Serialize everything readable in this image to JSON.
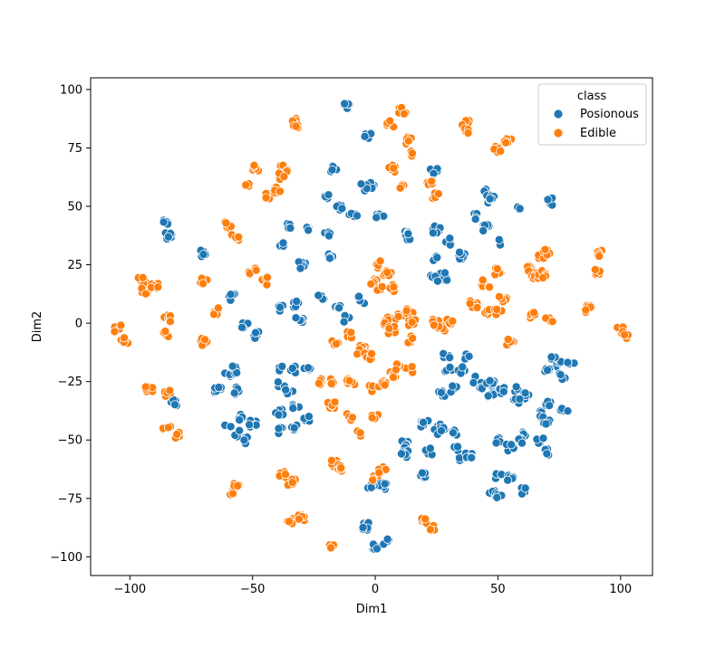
{
  "chart_data": {
    "type": "scatter",
    "title": "",
    "xlabel": "Dim1",
    "ylabel": "Dim2",
    "xlim": [
      -116,
      113
    ],
    "ylim": [
      -108,
      105
    ],
    "xticks": [
      -100,
      -50,
      0,
      50,
      100
    ],
    "yticks": [
      -100,
      -75,
      -50,
      -25,
      0,
      25,
      50,
      75,
      100
    ],
    "legend": {
      "title": "class",
      "position": "top-right"
    },
    "grid": false,
    "series": [
      {
        "name": "Posionous",
        "color": "#1f77b4",
        "clusters": [
          [
            -12,
            93
          ],
          [
            -3,
            80
          ],
          [
            -17,
            66
          ],
          [
            -2,
            59
          ],
          [
            2,
            46
          ],
          [
            -20,
            55
          ],
          [
            -15,
            50
          ],
          [
            -9,
            46
          ],
          [
            -36,
            42
          ],
          [
            -27,
            40
          ],
          [
            -20,
            38
          ],
          [
            -38,
            33
          ],
          [
            -18,
            29
          ],
          [
            -30,
            25
          ],
          [
            -32,
            8
          ],
          [
            -38,
            6
          ],
          [
            -22,
            11
          ],
          [
            -15,
            7
          ],
          [
            -12,
            2
          ],
          [
            -6,
            10
          ],
          [
            -31,
            1
          ],
          [
            -58,
            11
          ],
          [
            -53,
            -1
          ],
          [
            -48,
            -5
          ],
          [
            -85,
            43
          ],
          [
            -84,
            37
          ],
          [
            -70,
            30
          ],
          [
            -60,
            -23
          ],
          [
            -57,
            -20
          ],
          [
            -57,
            -29
          ],
          [
            -64,
            -28
          ],
          [
            -60,
            -43
          ],
          [
            -56,
            -47
          ],
          [
            -54,
            -40
          ],
          [
            -50,
            -43
          ],
          [
            -53,
            -50
          ],
          [
            -39,
            -20
          ],
          [
            -34,
            -20
          ],
          [
            -38,
            -26
          ],
          [
            -28,
            -19
          ],
          [
            -35,
            -30
          ],
          [
            -39,
            -38
          ],
          [
            -32,
            -36
          ],
          [
            -38,
            -46
          ],
          [
            -33,
            -45
          ],
          [
            -28,
            -41
          ],
          [
            -82,
            -34
          ],
          [
            -4,
            -87
          ],
          [
            0,
            -96
          ],
          [
            5,
            -94
          ],
          [
            3,
            -70
          ],
          [
            -2,
            -70
          ],
          [
            12,
            -52
          ],
          [
            12,
            -56
          ],
          [
            22,
            -55
          ],
          [
            19,
            -65
          ],
          [
            20,
            -43
          ],
          [
            25,
            -44
          ],
          [
            27,
            -46
          ],
          [
            33,
            -47
          ],
          [
            33,
            -53
          ],
          [
            35,
            -58
          ],
          [
            38,
            -56
          ],
          [
            27,
            -30
          ],
          [
            32,
            -28
          ],
          [
            40,
            -24
          ],
          [
            38,
            -14
          ],
          [
            29,
            -14
          ],
          [
            30,
            -20
          ],
          [
            35,
            -20
          ],
          [
            43,
            -27
          ],
          [
            47,
            -30
          ],
          [
            47,
            -26
          ],
          [
            52,
            -29
          ],
          [
            58,
            -28
          ],
          [
            62,
            -31
          ],
          [
            58,
            -34
          ],
          [
            67,
            -39
          ],
          [
            70,
            -35
          ],
          [
            77,
            -38
          ],
          [
            70,
            -43
          ],
          [
            75,
            -17
          ],
          [
            72,
            -15
          ],
          [
            80,
            -17
          ],
          [
            70,
            -20
          ],
          [
            76,
            -23
          ],
          [
            50,
            -50
          ],
          [
            55,
            -53
          ],
          [
            60,
            -48
          ],
          [
            60,
            -51
          ],
          [
            67,
            -50
          ],
          [
            70,
            -55
          ],
          [
            50,
            -66
          ],
          [
            55,
            -66
          ],
          [
            48,
            -73
          ],
          [
            50,
            -74
          ],
          [
            60,
            -72
          ],
          [
            12,
            38
          ],
          [
            14,
            37
          ],
          [
            25,
            40
          ],
          [
            30,
            35
          ],
          [
            35,
            29
          ],
          [
            25,
            28
          ],
          [
            28,
            20
          ],
          [
            24,
            19
          ],
          [
            41,
            46
          ],
          [
            45,
            41
          ],
          [
            52,
            35
          ],
          [
            46,
            56
          ],
          [
            47,
            53
          ],
          [
            59,
            50
          ],
          [
            71,
            52
          ],
          [
            24,
            65
          ],
          [
            -5,
            58
          ]
        ]
      },
      {
        "name": "Edible",
        "color": "#ff7f0e",
        "clusters": [
          [
            -33,
            86
          ],
          [
            -32,
            84
          ],
          [
            6,
            85
          ],
          [
            11,
            91
          ],
          [
            14,
            78
          ],
          [
            14,
            73
          ],
          [
            37,
            86
          ],
          [
            37,
            82
          ],
          [
            50,
            74
          ],
          [
            54,
            78
          ],
          [
            7,
            66
          ],
          [
            10,
            58
          ],
          [
            22,
            60
          ],
          [
            25,
            55
          ],
          [
            -49,
            66
          ],
          [
            -52,
            60
          ],
          [
            -44,
            54
          ],
          [
            -40,
            57
          ],
          [
            -37,
            66
          ],
          [
            -38,
            63
          ],
          [
            -60,
            42
          ],
          [
            -57,
            37
          ],
          [
            -50,
            22
          ],
          [
            -45,
            18
          ],
          [
            -70,
            18
          ],
          [
            -65,
            5
          ],
          [
            -95,
            18
          ],
          [
            -94,
            14
          ],
          [
            -90,
            16
          ],
          [
            -105,
            -2
          ],
          [
            -102,
            -7
          ],
          [
            -85,
            2
          ],
          [
            -85,
            -5
          ],
          [
            -70,
            -8
          ],
          [
            -92,
            -28
          ],
          [
            -85,
            -30
          ],
          [
            -85,
            -45
          ],
          [
            -80,
            -48
          ],
          [
            -58,
            -72
          ],
          [
            -56,
            -69
          ],
          [
            -38,
            -65
          ],
          [
            -34,
            -68
          ],
          [
            -35,
            -85
          ],
          [
            -30,
            -83
          ],
          [
            -18,
            -96
          ],
          [
            -17,
            -60
          ],
          [
            -15,
            -62
          ],
          [
            -10,
            -40
          ],
          [
            -6,
            -47
          ],
          [
            0,
            -40
          ],
          [
            0,
            -67
          ],
          [
            3,
            -63
          ],
          [
            -18,
            -25
          ],
          [
            -10,
            -25
          ],
          [
            -2,
            -28
          ],
          [
            3,
            -26
          ],
          [
            7,
            -22
          ],
          [
            -16,
            -8
          ],
          [
            -10,
            -5
          ],
          [
            -5,
            -10
          ],
          [
            -6,
            -12
          ],
          [
            -3,
            -14
          ],
          [
            -1,
            18
          ],
          [
            2,
            25
          ],
          [
            5,
            22
          ],
          [
            2,
            14
          ],
          [
            7,
            15
          ],
          [
            5,
            1
          ],
          [
            10,
            3
          ],
          [
            7,
            -3
          ],
          [
            14,
            5
          ],
          [
            15,
            0
          ],
          [
            14,
            -7
          ],
          [
            14,
            -20
          ],
          [
            9,
            -19
          ],
          [
            20,
            -85
          ],
          [
            24,
            -88
          ],
          [
            27,
            -2
          ],
          [
            25,
            0
          ],
          [
            30,
            1
          ],
          [
            40,
            8
          ],
          [
            45,
            5
          ],
          [
            52,
            10
          ],
          [
            50,
            5
          ],
          [
            45,
            17
          ],
          [
            50,
            22
          ],
          [
            55,
            -8
          ],
          [
            63,
            23
          ],
          [
            67,
            29
          ],
          [
            70,
            30
          ],
          [
            65,
            20
          ],
          [
            68,
            21
          ],
          [
            64,
            3
          ],
          [
            71,
            1
          ],
          [
            87,
            6
          ],
          [
            90,
            22
          ],
          [
            92,
            30
          ],
          [
            100,
            -3
          ],
          [
            102,
            -5
          ],
          [
            -23,
            -25
          ],
          [
            -18,
            -35
          ]
        ]
      }
    ]
  }
}
